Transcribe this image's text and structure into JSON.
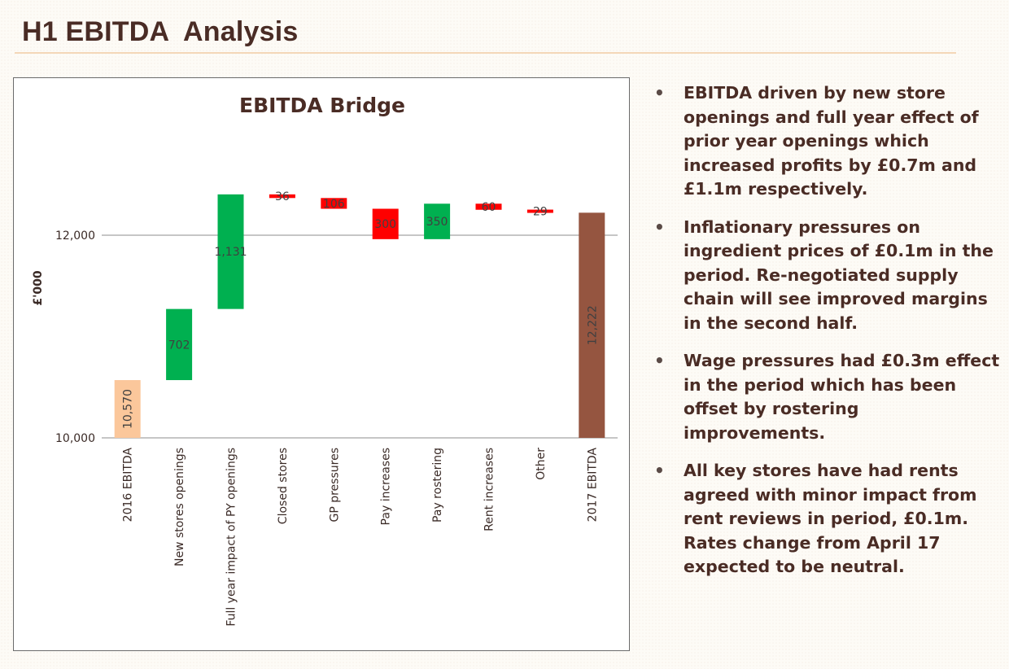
{
  "page": {
    "title": "H1 EBITDA  Analysis"
  },
  "bullets": [
    "EBITDA driven by new store openings and full year effect of prior year openings which increased profits by £0.7m and £1.1m respectively.",
    "Inflationary pressures on ingredient prices of £0.1m in the period.  Re-negotiated supply chain will see improved margins in the second half.",
    "Wage pressures had £0.3m effect in the period which has been offset by rostering improvements.",
    "All key stores have had rents agreed with minor impact from rent reviews in period, £0.1m. Rates change from April 17 expected to be neutral."
  ],
  "colors": {
    "start": "#fbc79b",
    "increase": "#00b050",
    "decrease": "#ff0000",
    "end": "#955540",
    "gridline": "#8c8c8c",
    "text": "#4a2c25"
  },
  "chart_data": {
    "type": "bar",
    "subtype": "waterfall",
    "title": "EBITDA Bridge",
    "ylabel": "£'000",
    "xlabel": "",
    "ylim": [
      10000,
      12000
    ],
    "yticks": [
      10000,
      12000
    ],
    "ytick_labels": [
      "10,000",
      "12,000"
    ],
    "grid": true,
    "legend": "none",
    "categories": [
      "2016 EBITDA",
      "New stores openings",
      "Full year impact of PY openings",
      "Closed stores",
      "GP pressures",
      "Pay increases",
      "Pay rostering",
      "Rent increases",
      "Other",
      "2017 EBITDA"
    ],
    "values": [
      10570,
      702,
      1131,
      -36,
      -106,
      -300,
      350,
      -60,
      -29,
      12222
    ],
    "kinds": [
      "total",
      "increase",
      "increase",
      "decrease",
      "decrease",
      "decrease",
      "increase",
      "decrease",
      "decrease",
      "total"
    ],
    "data_labels": [
      "10,570",
      "702",
      "1,131",
      "36",
      "106",
      "300",
      "350",
      "60",
      "29",
      "12,222"
    ]
  }
}
